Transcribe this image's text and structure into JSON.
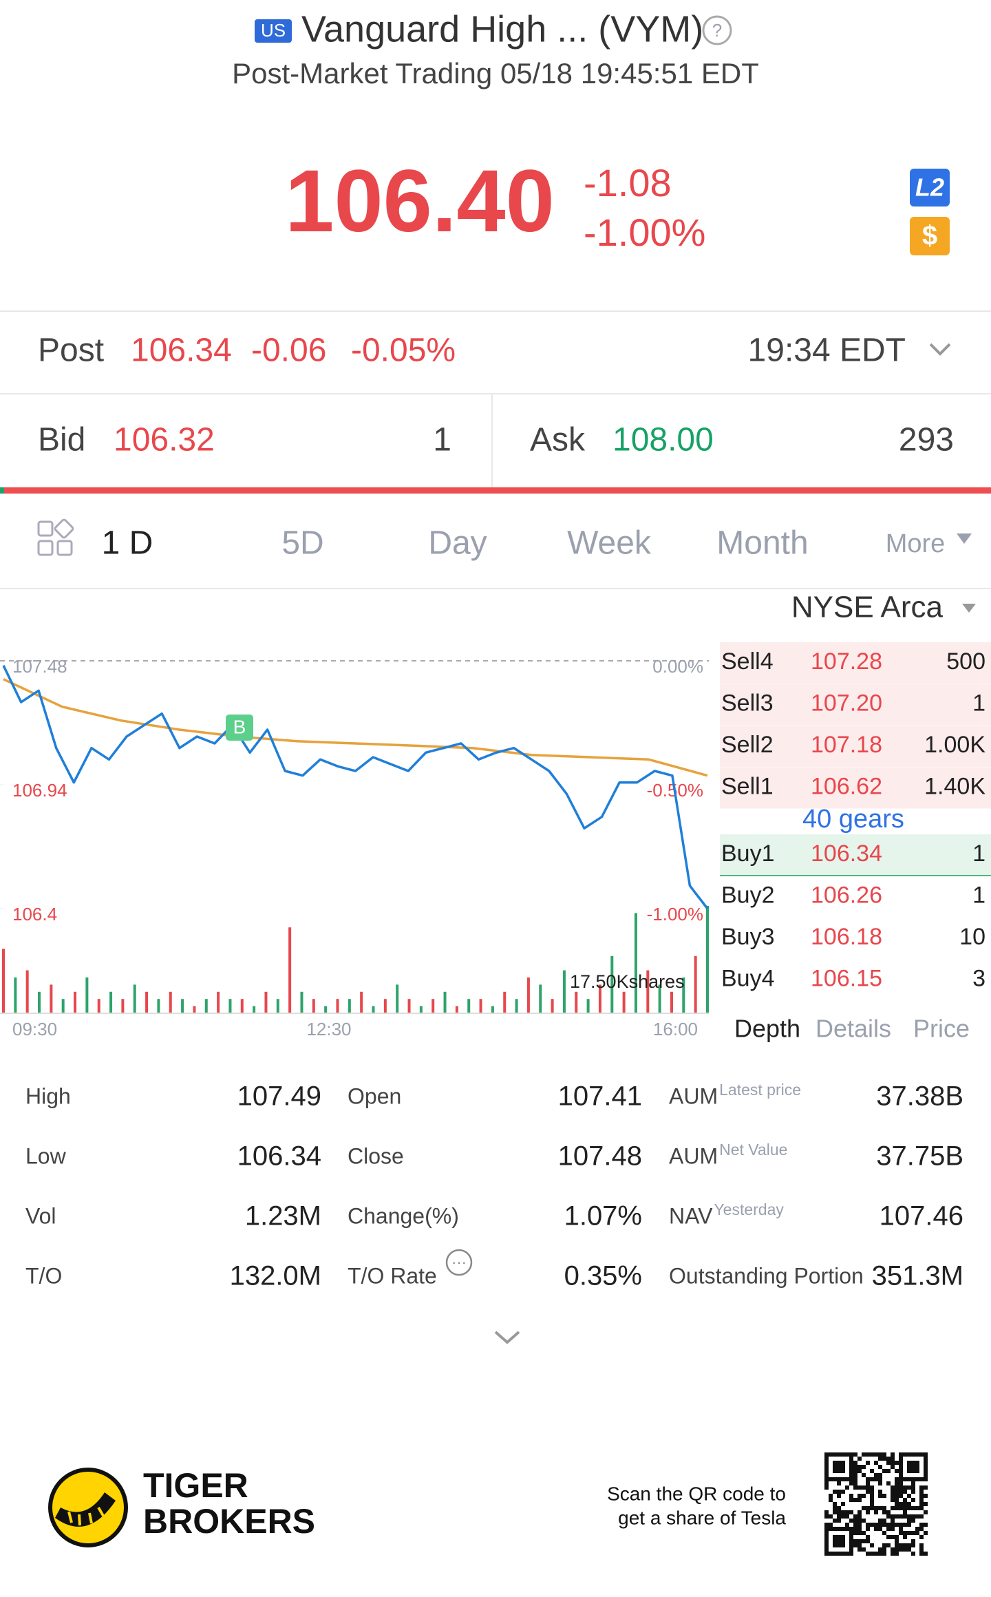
{
  "header": {
    "market": "US",
    "title": "Vanguard High ... (VYM)",
    "subtitle": "Post-Market Trading 05/18 19:45:51 EDT"
  },
  "quote": {
    "price": "106.40",
    "change": "-1.08",
    "change_pct": "-1.00%",
    "badge_l2": "L2",
    "badge_cash": "$"
  },
  "post": {
    "label": "Post",
    "price": "106.34",
    "change": "-0.06",
    "change_pct": "-0.05%",
    "time": "19:34 EDT"
  },
  "bid": {
    "label": "Bid",
    "price": "106.32",
    "size": "1"
  },
  "ask": {
    "label": "Ask",
    "price": "108.00",
    "size": "293"
  },
  "tabs": [
    "1 D",
    "5D",
    "Day",
    "Week",
    "Month",
    "More"
  ],
  "exchange": "NYSE Arca",
  "chart_data": {
    "type": "line",
    "series": [
      {
        "name": "Price",
        "color": "#1f7fd9",
        "values": [
          107.46,
          107.3,
          107.35,
          107.1,
          106.95,
          107.1,
          107.05,
          107.15,
          107.2,
          107.25,
          107.1,
          107.15,
          107.12,
          107.2,
          107.08,
          107.18,
          107.0,
          106.98,
          107.05,
          107.02,
          107.0,
          107.06,
          107.03,
          107.0,
          107.08,
          107.1,
          107.12,
          107.05,
          107.08,
          107.1,
          107.05,
          107.0,
          106.9,
          106.75,
          106.8,
          106.95,
          106.95,
          107.0,
          106.98,
          106.5,
          106.4
        ]
      },
      {
        "name": "Average",
        "color": "#e6a23c",
        "values": [
          107.4,
          107.28,
          107.22,
          107.18,
          107.15,
          107.13,
          107.12,
          107.11,
          107.1,
          107.07,
          107.06,
          107.05,
          106.98
        ]
      }
    ],
    "ylim": [
      106.4,
      107.48
    ],
    "yticks": [
      107.48,
      106.94,
      106.4
    ],
    "y2lim": [
      -1,
      0
    ],
    "y2ticks": [
      {
        "value": 0,
        "label": "0.00%"
      },
      {
        "value": -0.5,
        "label": "-0.50%"
      },
      {
        "value": -1,
        "label": "-1.00%"
      }
    ],
    "xticks": [
      "09:30",
      "12:30",
      "16:00"
    ],
    "marker": "B",
    "volume": {
      "colors": [
        "#e5484d",
        "#2ea36b"
      ],
      "ylim": [
        0,
        17.5
      ],
      "yticks": [
        {
          "value": 17.5,
          "label": "17.50Kshares"
        }
      ],
      "values": [
        9,
        5,
        6,
        3,
        4,
        2,
        3,
        5,
        2,
        3,
        2,
        4,
        3,
        2,
        3,
        2,
        1,
        2,
        3,
        2,
        2,
        1,
        3,
        2,
        12,
        3,
        2,
        1,
        2,
        2,
        3,
        1,
        2,
        4,
        2,
        1,
        2,
        3,
        1,
        2,
        2,
        1,
        3,
        2,
        5,
        4,
        2,
        6,
        3,
        2,
        4,
        8,
        3,
        14,
        6,
        4,
        3,
        5,
        8,
        15
      ]
    }
  },
  "order_book": {
    "sell": [
      {
        "label": "Sell4",
        "price": "107.28",
        "qty": "500"
      },
      {
        "label": "Sell3",
        "price": "107.20",
        "qty": "1"
      },
      {
        "label": "Sell2",
        "price": "107.18",
        "qty": "1.00K"
      },
      {
        "label": "Sell1",
        "price": "106.62",
        "qty": "1.40K"
      }
    ],
    "gears": "40 gears",
    "buy": [
      {
        "label": "Buy1",
        "price": "106.34",
        "qty": "1"
      },
      {
        "label": "Buy2",
        "price": "106.26",
        "qty": "1"
      },
      {
        "label": "Buy3",
        "price": "106.18",
        "qty": "10"
      },
      {
        "label": "Buy4",
        "price": "106.15",
        "qty": "3"
      }
    ],
    "tabs": [
      "Depth",
      "Details",
      "Price"
    ]
  },
  "stats": {
    "columns": [
      [
        {
          "label": "High",
          "value": "107.49"
        },
        {
          "label": "Low",
          "value": "106.34"
        },
        {
          "label": "Vol",
          "value": "1.23M"
        },
        {
          "label": "T/O",
          "value": "132.0M"
        }
      ],
      [
        {
          "label": "Open",
          "value": "107.41"
        },
        {
          "label": "Close",
          "value": "107.48"
        },
        {
          "label": "Change(%)",
          "value": "1.07%"
        },
        {
          "label": "T/O Rate",
          "value": "0.35%"
        }
      ],
      [
        {
          "label": "AUM",
          "sup": "Latest price",
          "value": "37.38B"
        },
        {
          "label": "AUM",
          "sup": "Net Value",
          "value": "37.75B"
        },
        {
          "label": "NAV",
          "sup": "Yesterday",
          "value": "107.46"
        },
        {
          "label": "Outstanding Portion",
          "value": "351.3M"
        }
      ]
    ]
  },
  "footer": {
    "brand_line1": "TIGER",
    "brand_line2": "BROKERS",
    "scan_line1": "Scan the QR code to",
    "scan_line2": "get a share of Tesla"
  }
}
